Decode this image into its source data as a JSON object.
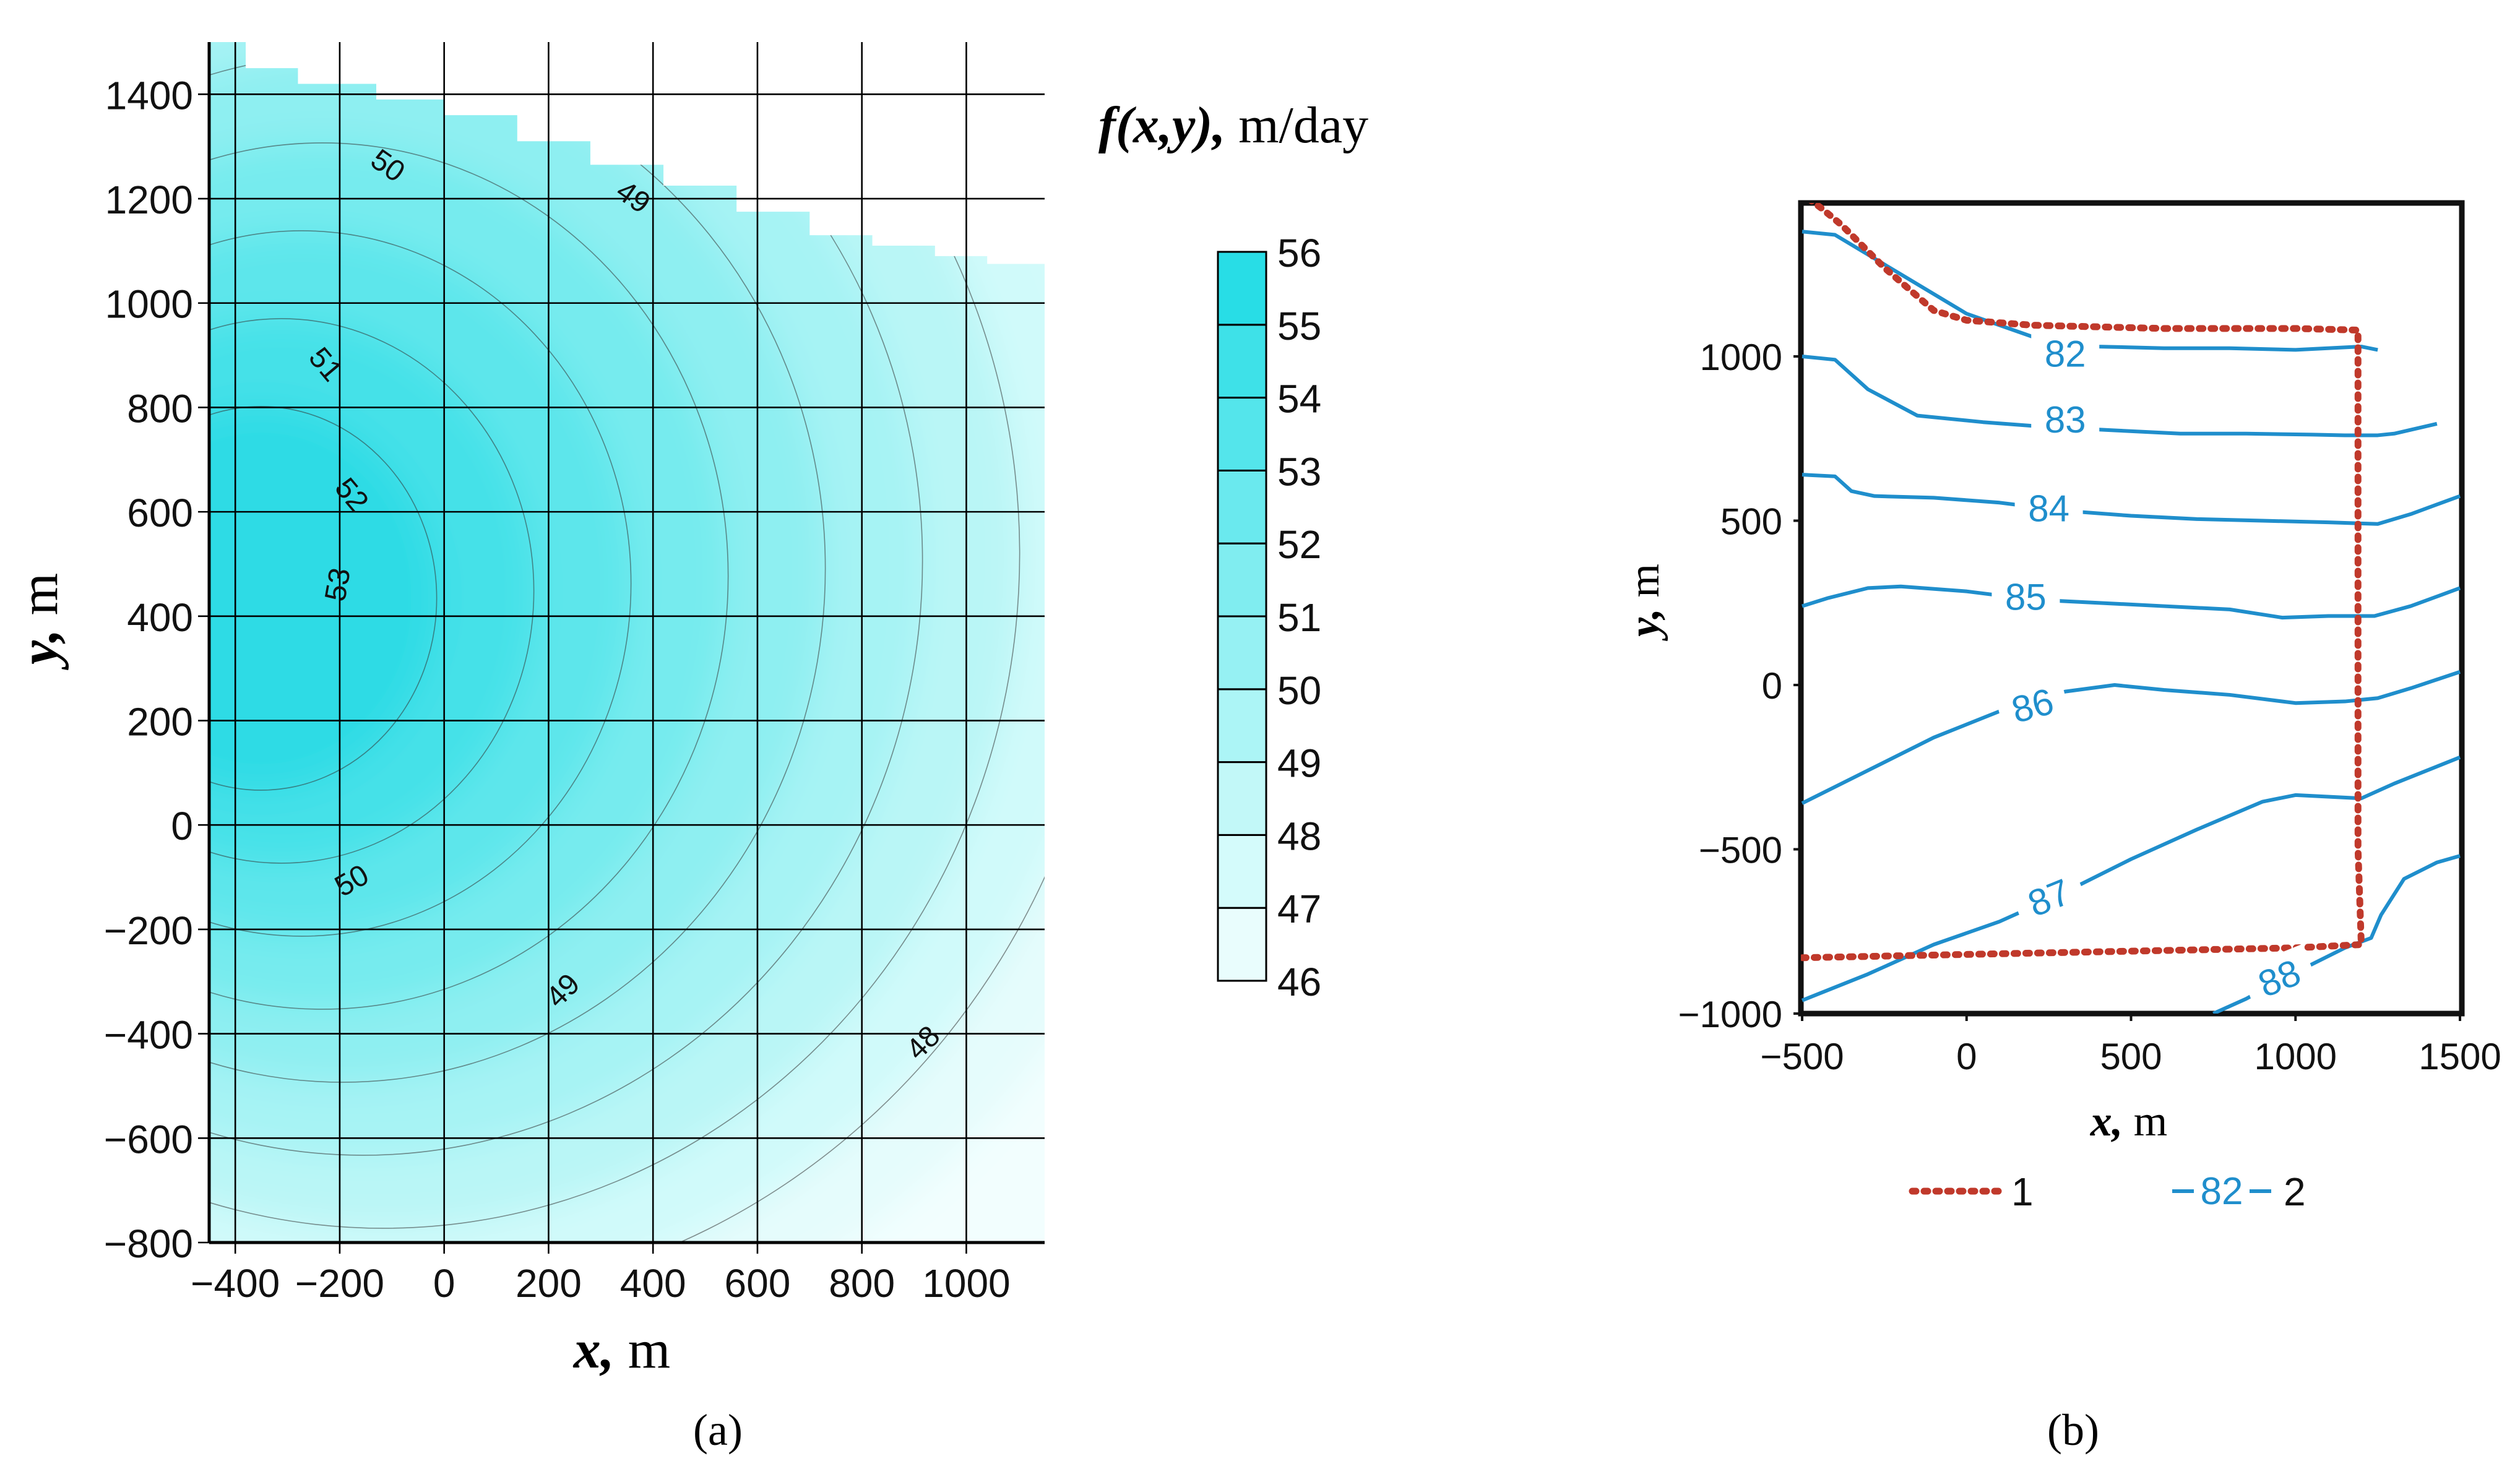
{
  "colors": {
    "fill_levels": [
      "#f2fefe",
      "#e5fcfc",
      "#d0fafa",
      "#b9f6f6",
      "#a6f3f4",
      "#8eeff1",
      "#76ebee",
      "#5de6eb",
      "#45e1e8",
      "#2ddbe5"
    ],
    "legend_colors": [
      "#e9fdfd",
      "#d4fbfb",
      "#c2f8f8",
      "#acf5f6",
      "#96f1f3",
      "#80edf0",
      "#6ae9ee",
      "#54e5eb",
      "#3ee1e8",
      "#28dde6"
    ],
    "contour_b": "#1f8ecc",
    "boundary_b": "#c0392b",
    "contour_a": "#333333"
  },
  "chart_data": [
    {
      "id": "a",
      "type": "heatmap",
      "subtype": "filled-contour",
      "panel_label": "(a)",
      "title": "",
      "xlabel": {
        "var": "x,",
        "unit": " m"
      },
      "ylabel": {
        "var": "y,",
        "unit": " m"
      },
      "xlim": [
        -450,
        1150
      ],
      "ylim": [
        -800,
        1500
      ],
      "xticks": [
        -400,
        -200,
        0,
        200,
        400,
        600,
        800,
        1000
      ],
      "xtick_labels": [
        "−400",
        "−200",
        "0",
        "200",
        "400",
        "600",
        "800",
        "1000"
      ],
      "yticks": [
        -800,
        -600,
        -400,
        -200,
        0,
        200,
        400,
        600,
        800,
        1000,
        1200,
        1400
      ],
      "ytick_labels": [
        "−800",
        "−600",
        "−400",
        "−200",
        "0",
        "200",
        "400",
        "600",
        "800",
        "1000",
        "1200",
        "1400"
      ],
      "grid": true,
      "colorbar": {
        "title_var": "f(x,y),",
        "title_unit": " m/day",
        "levels": [
          46,
          47,
          48,
          49,
          50,
          51,
          52,
          53,
          54,
          55,
          56
        ],
        "labels": [
          "46",
          "47",
          "48",
          "49",
          "50",
          "51",
          "52",
          "53",
          "54",
          "55",
          "56"
        ]
      },
      "peak": {
        "x": -390,
        "y": 420,
        "value": 55.5
      },
      "boundary_y": [
        [
          -450,
          1500
        ],
        [
          -380,
          1450
        ],
        [
          -280,
          1420
        ],
        [
          -130,
          1390
        ],
        [
          0,
          1360
        ],
        [
          140,
          1310
        ],
        [
          280,
          1265
        ],
        [
          420,
          1225
        ],
        [
          560,
          1175
        ],
        [
          700,
          1130
        ],
        [
          820,
          1110
        ],
        [
          940,
          1090
        ],
        [
          1040,
          1075
        ],
        [
          1150,
          1075
        ]
      ],
      "contour_labels": [
        {
          "text": "50",
          "x": -110,
          "y": 1260
        },
        {
          "text": "49",
          "x": 360,
          "y": 1200
        },
        {
          "text": "51",
          "x": -230,
          "y": 880
        },
        {
          "text": "52",
          "x": -180,
          "y": 630
        },
        {
          "text": "53",
          "x": -200,
          "y": 460
        },
        {
          "text": "50",
          "x": -175,
          "y": -110
        },
        {
          "text": "49",
          "x": 230,
          "y": -320
        },
        {
          "text": "48",
          "x": 920,
          "y": -420
        }
      ]
    },
    {
      "id": "b",
      "type": "line",
      "subtype": "contour-lines",
      "panel_label": "(b)",
      "title": "",
      "xlabel": {
        "var": "x,",
        "unit": " m"
      },
      "ylabel": {
        "var": "y,",
        "unit": " m"
      },
      "xlim": [
        -500,
        1500
      ],
      "ylim": [
        -1000,
        1500
      ],
      "xticks": [
        -500,
        0,
        500,
        1000,
        1500
      ],
      "xtick_labels": [
        "−500",
        "0",
        "500",
        "1000",
        "1500"
      ],
      "yticks": [
        -1000,
        -500,
        0,
        500,
        1000
      ],
      "ytick_labels": [
        "−1000",
        "−500",
        "0",
        "500",
        "1000"
      ],
      "grid": false,
      "series": [
        {
          "name": "82",
          "label_at": [
            300,
            1010
          ],
          "points": [
            [
              -500,
              1380
            ],
            [
              -400,
              1370
            ],
            [
              -200,
              1250
            ],
            [
              0,
              1130
            ],
            [
              200,
              1060
            ],
            [
              400,
              1030
            ],
            [
              600,
              1025
            ],
            [
              800,
              1025
            ],
            [
              1000,
              1020
            ],
            [
              1200,
              1030
            ],
            [
              1250,
              1020
            ]
          ]
        },
        {
          "name": "83",
          "label_at": [
            300,
            810
          ],
          "points": [
            [
              -500,
              1000
            ],
            [
              -400,
              990
            ],
            [
              -300,
              900
            ],
            [
              -150,
              820
            ],
            [
              50,
              800
            ],
            [
              250,
              785
            ],
            [
              450,
              775
            ],
            [
              650,
              765
            ],
            [
              850,
              765
            ],
            [
              1050,
              762
            ],
            [
              1150,
              760
            ],
            [
              1250,
              760
            ],
            [
              1300,
              765
            ],
            [
              1430,
              795
            ]
          ]
        },
        {
          "name": "84",
          "label_at": [
            250,
            540
          ],
          "points": [
            [
              -500,
              640
            ],
            [
              -400,
              635
            ],
            [
              -350,
              590
            ],
            [
              -280,
              575
            ],
            [
              -100,
              570
            ],
            [
              100,
              555
            ],
            [
              300,
              530
            ],
            [
              500,
              515
            ],
            [
              700,
              505
            ],
            [
              900,
              500
            ],
            [
              1100,
              495
            ],
            [
              1250,
              490
            ],
            [
              1350,
              520
            ],
            [
              1500,
              575
            ]
          ]
        },
        {
          "name": "85",
          "label_at": [
            180,
            270
          ],
          "points": [
            [
              -500,
              240
            ],
            [
              -420,
              265
            ],
            [
              -300,
              295
            ],
            [
              -200,
              300
            ],
            [
              0,
              285
            ],
            [
              200,
              260
            ],
            [
              400,
              250
            ],
            [
              600,
              240
            ],
            [
              800,
              230
            ],
            [
              960,
              205
            ],
            [
              1100,
              210
            ],
            [
              1240,
              210
            ],
            [
              1350,
              240
            ],
            [
              1500,
              295
            ]
          ]
        },
        {
          "name": "86",
          "label_at": [
            200,
            -60
          ],
          "points": [
            [
              -500,
              -360
            ],
            [
              -300,
              -260
            ],
            [
              -100,
              -160
            ],
            [
              100,
              -80
            ],
            [
              300,
              -20
            ],
            [
              450,
              0
            ],
            [
              600,
              -15
            ],
            [
              800,
              -30
            ],
            [
              1000,
              -55
            ],
            [
              1150,
              -50
            ],
            [
              1250,
              -40
            ],
            [
              1350,
              -10
            ],
            [
              1500,
              40
            ]
          ]
        },
        {
          "name": "87",
          "label_at": [
            250,
            -645
          ],
          "points": [
            [
              -500,
              -960
            ],
            [
              -300,
              -880
            ],
            [
              -100,
              -790
            ],
            [
              100,
              -720
            ],
            [
              300,
              -630
            ],
            [
              500,
              -530
            ],
            [
              700,
              -440
            ],
            [
              900,
              -355
            ],
            [
              1000,
              -335
            ],
            [
              1200,
              -345
            ],
            [
              1300,
              -300
            ],
            [
              1400,
              -260
            ],
            [
              1500,
              -220
            ]
          ]
        },
        {
          "name": "88",
          "label_at": [
            950,
            -890
          ],
          "points": [
            [
              750,
              -1000
            ],
            [
              850,
              -955
            ],
            [
              950,
              -900
            ],
            [
              1050,
              -850
            ],
            [
              1150,
              -800
            ],
            [
              1230,
              -770
            ],
            [
              1260,
              -700
            ],
            [
              1330,
              -590
            ],
            [
              1430,
              -540
            ],
            [
              1500,
              -520
            ]
          ]
        }
      ],
      "boundary": {
        "name": "1",
        "points": [
          [
            -480,
            1480
          ],
          [
            -440,
            1450
          ],
          [
            -380,
            1400
          ],
          [
            -250,
            1270
          ],
          [
            -100,
            1140
          ],
          [
            0,
            1110
          ],
          [
            200,
            1095
          ],
          [
            600,
            1085
          ],
          [
            1000,
            1085
          ],
          [
            1190,
            1080
          ],
          [
            1190,
            600
          ],
          [
            1190,
            0
          ],
          [
            1190,
            -500
          ],
          [
            1200,
            -790
          ],
          [
            1000,
            -800
          ],
          [
            500,
            -810
          ],
          [
            0,
            -820
          ],
          [
            -500,
            -830
          ]
        ]
      },
      "legend": [
        {
          "key": "1",
          "label": "1",
          "style": "dotted-red"
        },
        {
          "key": "2",
          "label": "2",
          "sample_text": "82",
          "style": "solid-blue"
        }
      ]
    }
  ]
}
